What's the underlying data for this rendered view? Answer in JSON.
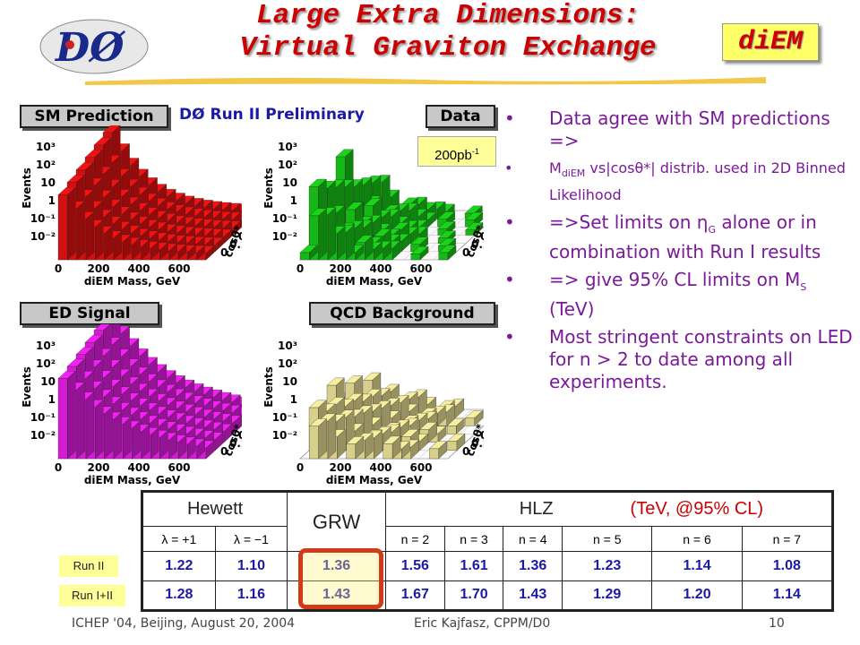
{
  "title": {
    "line1": "Large Extra Dimensions:",
    "line2": "Virtual Graviton Exchange"
  },
  "tag": "diEM",
  "logo_text": "DØ",
  "plots": {
    "preliminary": "DØ Run II Preliminary",
    "luminosity": "200pb",
    "luminosity_sup": "-1",
    "panels": [
      {
        "label": "SM Prediction",
        "color": "#d31010"
      },
      {
        "label": "Data",
        "color": "#16b816"
      },
      {
        "label": "ED Signal",
        "color": "#d51cd5"
      },
      {
        "label": "QCD Background",
        "color": "#d8cf8a"
      }
    ],
    "y_axis_title": "Events",
    "y_ticks": [
      "10³",
      "10²",
      "10",
      "1",
      "10⁻¹",
      "10⁻²"
    ],
    "x_axis_title": "diEM Mass, GeV",
    "x_ticks": [
      "0",
      "200",
      "400",
      "600"
    ],
    "z_axis_title": "cosθ*",
    "z_ticks": [
      "1",
      "0.8",
      "0.6",
      "0.4",
      "0.2",
      "0"
    ]
  },
  "bullets": [
    {
      "text_a": "Data agree with SM predictions =>",
      "size": "big"
    },
    {
      "pre": "M",
      "sub": "diEM",
      "post": " vs|cosθ*| distrib. used in 2D Binned Likelihood",
      "size": "small"
    },
    {
      "pre": "=>Set limits on η",
      "sub": "G",
      "post": " alone or in combination with Run I results",
      "size": "big"
    },
    {
      "pre": "=> give 95% CL limits on M",
      "sub": "S",
      "post": " (TeV)",
      "size": "big"
    },
    {
      "text_a": "Most stringent constraints on LED for n > 2 to date among all experiments.",
      "size": "big"
    }
  ],
  "bullet_char": "•",
  "table": {
    "hewett": "Hewett",
    "grw": "GRW",
    "hlz": "HLZ",
    "cl_note": "(TeV, @95% CL)",
    "subheaders": [
      "λ = +1",
      "λ = −1",
      "n = 2",
      "n = 3",
      "n = 4",
      "n = 5",
      "n = 6",
      "n = 7"
    ],
    "rows": [
      {
        "label": "Run II",
        "hewett": [
          "1.22",
          "1.10"
        ],
        "grw": "1.36",
        "hlz": [
          "1.56",
          "1.61",
          "1.36",
          "1.23",
          "1.14",
          "1.08"
        ]
      },
      {
        "label": "Run I+II",
        "hewett": [
          "1.28",
          "1.16"
        ],
        "grw": "1.43",
        "hlz": [
          "1.67",
          "1.70",
          "1.43",
          "1.29",
          "1.20",
          "1.14"
        ]
      }
    ]
  },
  "footer": {
    "left": "ICHEP '04, Beijing,  August 20, 2004",
    "center": "Eric Kajfasz, CPPM/D0",
    "page": "10"
  }
}
